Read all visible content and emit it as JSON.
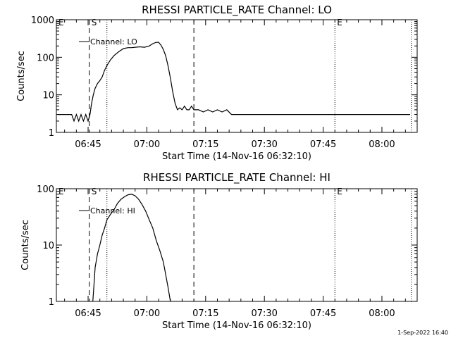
{
  "chart_data": [
    {
      "type": "line",
      "title": "RHESSI PARTICLE_RATE Channel: LO",
      "xlabel": "Start Time (14-Nov-16 06:32:10)",
      "ylabel": "Counts/sec",
      "yscale": "log",
      "ylim": [
        1,
        1000
      ],
      "y_ticks": [
        1,
        10,
        100,
        1000
      ],
      "y_tick_labels": [
        "1",
        "10",
        "100",
        "1000"
      ],
      "xlim": [
        6.615,
        8.15
      ],
      "x_ticks": [
        6.75,
        7.0,
        7.25,
        7.5,
        7.75,
        8.0
      ],
      "x_tick_labels": [
        "06:45",
        "07:00",
        "07:15",
        "07:30",
        "07:45",
        "08:00"
      ],
      "legend": {
        "label": "Channel: LO",
        "placement": "top-left"
      },
      "markers": [
        {
          "label": "E",
          "x": 6.615
        },
        {
          "label": "S",
          "x": 6.755
        },
        {
          "label": "E",
          "x": 7.8
        }
      ],
      "dashed_lines": [
        6.755,
        7.2
      ],
      "dotted_lines": [
        6.83,
        7.8,
        8.125
      ],
      "series": [
        {
          "name": "Channel: LO",
          "x": [
            6.62,
            6.68,
            6.69,
            6.7,
            6.71,
            6.72,
            6.73,
            6.74,
            6.75,
            6.758,
            6.765,
            6.772,
            6.78,
            6.79,
            6.8,
            6.81,
            6.82,
            6.83,
            6.845,
            6.86,
            6.88,
            6.9,
            6.92,
            6.935,
            6.95,
            6.97,
            6.99,
            7.01,
            7.025,
            7.04,
            7.05,
            7.06,
            7.07,
            7.08,
            7.09,
            7.1,
            7.11,
            7.12,
            7.13,
            7.14,
            7.15,
            7.16,
            7.17,
            7.18,
            7.19,
            7.2,
            7.21,
            7.22,
            7.24,
            7.26,
            7.28,
            7.3,
            7.32,
            7.34,
            7.36,
            7.38,
            7.4,
            7.42,
            7.44,
            7.46,
            7.48,
            7.5,
            7.52,
            7.54,
            7.56,
            7.58,
            7.6,
            7.62,
            7.64,
            7.66,
            7.68,
            7.7,
            7.72,
            7.74,
            7.76,
            7.78,
            7.8,
            7.82,
            7.84,
            7.86,
            7.88,
            7.9,
            7.92,
            7.94,
            7.96,
            7.98,
            8.0,
            8.02,
            8.04,
            8.06,
            8.08,
            8.1,
            8.12
          ],
          "values": [
            3,
            3,
            2,
            3,
            2,
            3,
            2,
            3,
            2,
            3,
            6,
            10,
            15,
            20,
            24,
            30,
            45,
            60,
            85,
            110,
            140,
            170,
            180,
            180,
            185,
            190,
            185,
            200,
            230,
            250,
            250,
            210,
            160,
            110,
            60,
            28,
            12,
            6,
            4,
            4.5,
            4,
            5,
            4,
            4,
            5,
            4,
            4,
            4,
            3.5,
            4,
            3.5,
            4,
            3.5,
            4,
            3,
            3,
            3,
            3,
            3,
            3,
            3,
            3,
            3,
            3,
            3,
            3,
            3,
            3,
            3,
            3,
            3,
            3,
            3,
            3,
            3,
            3,
            3,
            3,
            3,
            3,
            3,
            3,
            3,
            3,
            3,
            3,
            3,
            3,
            3,
            3,
            3,
            3,
            3
          ]
        }
      ]
    },
    {
      "type": "line",
      "title": "RHESSI PARTICLE_RATE Channel: HI",
      "xlabel": "Start Time (14-Nov-16 06:32:10)",
      "ylabel": "Counts/sec",
      "yscale": "log",
      "ylim": [
        1,
        100
      ],
      "y_ticks": [
        1,
        10,
        100
      ],
      "y_tick_labels": [
        "1",
        "10",
        "100"
      ],
      "xlim": [
        6.615,
        8.15
      ],
      "x_ticks": [
        6.75,
        7.0,
        7.25,
        7.5,
        7.75,
        8.0
      ],
      "x_tick_labels": [
        "06:45",
        "07:00",
        "07:15",
        "07:30",
        "07:45",
        "08:00"
      ],
      "legend": {
        "label": "Channel: HI",
        "placement": "top-left"
      },
      "markers": [
        {
          "label": "E",
          "x": 6.615
        },
        {
          "label": "S",
          "x": 6.755
        },
        {
          "label": "E",
          "x": 7.8
        }
      ],
      "dashed_lines": [
        6.755,
        7.2
      ],
      "dotted_lines": [
        6.83,
        7.8,
        8.125
      ],
      "series": [
        {
          "name": "Channel: HI",
          "x": [
            6.77,
            6.775,
            6.78,
            6.79,
            6.8,
            6.81,
            6.82,
            6.83,
            6.845,
            6.86,
            6.875,
            6.89,
            6.905,
            6.92,
            6.935,
            6.95,
            6.965,
            6.98,
            6.995,
            7.01,
            7.025,
            7.04,
            7.055,
            7.07,
            7.08,
            7.09,
            7.1
          ],
          "values": [
            1,
            2,
            4,
            7,
            10,
            15,
            20,
            28,
            35,
            42,
            55,
            65,
            72,
            78,
            80,
            75,
            65,
            52,
            40,
            28,
            20,
            12,
            8,
            5,
            3,
            1.8,
            1
          ]
        }
      ]
    }
  ],
  "footer": {
    "timestamp": "1-Sep-2022 16:40"
  }
}
